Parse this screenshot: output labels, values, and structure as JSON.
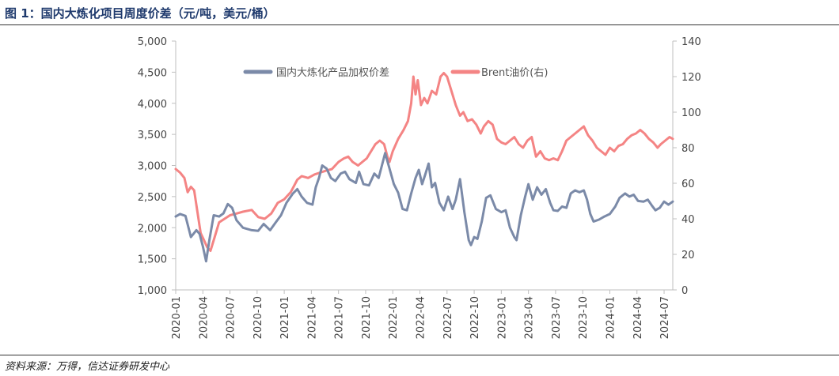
{
  "figure": {
    "title": "图 1：国内大炼化项目周度价差（元/吨，美元/桶）",
    "source": "资料来源：万得，信达证券研发中心"
  },
  "colors": {
    "series_spread": "#7b8aa8",
    "series_brent": "#f48484",
    "axis": "#bfbfbf",
    "title": "#1f3a6d"
  },
  "chart_data": {
    "type": "line",
    "grid": false,
    "legend_position": "top-center",
    "x_tick_labels": [
      "2020-01",
      "2020-04",
      "2020-07",
      "2020-10",
      "2021-01",
      "2021-04",
      "2021-07",
      "2021-10",
      "2022-01",
      "2022-04",
      "2022-07",
      "2022-10",
      "2023-01",
      "2023-04",
      "2023-07",
      "2023-10",
      "2024-01",
      "2024-04",
      "2024-07"
    ],
    "x_range": [
      2020.0,
      2024.58
    ],
    "y_left": {
      "range": [
        1000,
        5000
      ],
      "ticks": [
        1000,
        1500,
        2000,
        2500,
        3000,
        3500,
        4000,
        4500,
        5000
      ],
      "tick_labels": [
        "1,000",
        "1,500",
        "2,000",
        "2,500",
        "3,000",
        "3,500",
        "4,000",
        "4,500",
        "5,000"
      ]
    },
    "y_right": {
      "range": [
        0,
        140
      ],
      "ticks": [
        0,
        20,
        40,
        60,
        80,
        100,
        120,
        140
      ],
      "tick_labels": [
        "0",
        "20",
        "40",
        "60",
        "80",
        "100",
        "120",
        "140"
      ]
    },
    "series": [
      {
        "name": "国内大炼化产品加权价差",
        "axis": "left",
        "points": [
          [
            2020.0,
            2180
          ],
          [
            2020.04,
            2220
          ],
          [
            2020.09,
            2190
          ],
          [
            2020.14,
            1850
          ],
          [
            2020.19,
            1960
          ],
          [
            2020.22,
            1900
          ],
          [
            2020.25,
            1700
          ],
          [
            2020.28,
            1460
          ],
          [
            2020.31,
            1800
          ],
          [
            2020.35,
            2200
          ],
          [
            2020.4,
            2180
          ],
          [
            2020.44,
            2230
          ],
          [
            2020.48,
            2380
          ],
          [
            2020.52,
            2320
          ],
          [
            2020.56,
            2120
          ],
          [
            2020.62,
            2000
          ],
          [
            2020.7,
            1960
          ],
          [
            2020.76,
            1950
          ],
          [
            2020.81,
            2060
          ],
          [
            2020.87,
            1960
          ],
          [
            2020.92,
            2080
          ],
          [
            2020.97,
            2200
          ],
          [
            2021.02,
            2400
          ],
          [
            2021.08,
            2550
          ],
          [
            2021.12,
            2620
          ],
          [
            2021.16,
            2500
          ],
          [
            2021.21,
            2400
          ],
          [
            2021.26,
            2370
          ],
          [
            2021.29,
            2650
          ],
          [
            2021.32,
            2800
          ],
          [
            2021.35,
            3000
          ],
          [
            2021.39,
            2950
          ],
          [
            2021.43,
            2800
          ],
          [
            2021.47,
            2750
          ],
          [
            2021.52,
            2870
          ],
          [
            2021.56,
            2900
          ],
          [
            2021.6,
            2780
          ],
          [
            2021.66,
            2720
          ],
          [
            2021.69,
            2900
          ],
          [
            2021.73,
            2700
          ],
          [
            2021.78,
            2680
          ],
          [
            2021.83,
            2870
          ],
          [
            2021.87,
            2800
          ],
          [
            2021.9,
            3000
          ],
          [
            2021.93,
            3200
          ],
          [
            2021.97,
            2950
          ],
          [
            2022.01,
            2700
          ],
          [
            2022.05,
            2560
          ],
          [
            2022.09,
            2300
          ],
          [
            2022.13,
            2280
          ],
          [
            2022.17,
            2550
          ],
          [
            2022.21,
            2800
          ],
          [
            2022.24,
            2930
          ],
          [
            2022.27,
            2700
          ],
          [
            2022.3,
            2860
          ],
          [
            2022.33,
            3030
          ],
          [
            2022.36,
            2650
          ],
          [
            2022.39,
            2720
          ],
          [
            2022.43,
            2400
          ],
          [
            2022.47,
            2280
          ],
          [
            2022.51,
            2500
          ],
          [
            2022.55,
            2300
          ],
          [
            2022.58,
            2450
          ],
          [
            2022.62,
            2780
          ],
          [
            2022.66,
            2250
          ],
          [
            2022.7,
            1800
          ],
          [
            2022.72,
            1720
          ],
          [
            2022.75,
            1850
          ],
          [
            2022.78,
            1820
          ],
          [
            2022.82,
            2100
          ],
          [
            2022.86,
            2480
          ],
          [
            2022.9,
            2520
          ],
          [
            2022.95,
            2300
          ],
          [
            2023.0,
            2250
          ],
          [
            2023.04,
            2280
          ],
          [
            2023.08,
            2000
          ],
          [
            2023.12,
            1850
          ],
          [
            2023.14,
            1800
          ],
          [
            2023.18,
            2200
          ],
          [
            2023.22,
            2500
          ],
          [
            2023.25,
            2700
          ],
          [
            2023.29,
            2450
          ],
          [
            2023.33,
            2650
          ],
          [
            2023.37,
            2530
          ],
          [
            2023.41,
            2620
          ],
          [
            2023.45,
            2400
          ],
          [
            2023.48,
            2280
          ],
          [
            2023.52,
            2270
          ],
          [
            2023.56,
            2340
          ],
          [
            2023.6,
            2320
          ],
          [
            2023.64,
            2550
          ],
          [
            2023.68,
            2600
          ],
          [
            2023.72,
            2570
          ],
          [
            2023.76,
            2600
          ],
          [
            2023.79,
            2450
          ],
          [
            2023.82,
            2220
          ],
          [
            2023.85,
            2100
          ],
          [
            2023.9,
            2130
          ],
          [
            2023.95,
            2180
          ],
          [
            2024.0,
            2220
          ],
          [
            2024.05,
            2340
          ],
          [
            2024.09,
            2480
          ],
          [
            2024.14,
            2550
          ],
          [
            2024.18,
            2500
          ],
          [
            2024.22,
            2530
          ],
          [
            2024.26,
            2430
          ],
          [
            2024.31,
            2420
          ],
          [
            2024.35,
            2450
          ],
          [
            2024.39,
            2350
          ],
          [
            2024.42,
            2280
          ],
          [
            2024.46,
            2320
          ],
          [
            2024.5,
            2420
          ],
          [
            2024.54,
            2370
          ],
          [
            2024.58,
            2420
          ]
        ]
      },
      {
        "name": "Brent油价(右)",
        "axis": "right",
        "points": [
          [
            2020.0,
            68
          ],
          [
            2020.04,
            66
          ],
          [
            2020.08,
            63
          ],
          [
            2020.11,
            55
          ],
          [
            2020.14,
            58
          ],
          [
            2020.17,
            56
          ],
          [
            2020.2,
            44
          ],
          [
            2020.23,
            32
          ],
          [
            2020.26,
            28
          ],
          [
            2020.29,
            24
          ],
          [
            2020.32,
            22
          ],
          [
            2020.36,
            30
          ],
          [
            2020.4,
            38
          ],
          [
            2020.45,
            40
          ],
          [
            2020.5,
            42
          ],
          [
            2020.56,
            43
          ],
          [
            2020.62,
            44
          ],
          [
            2020.7,
            45
          ],
          [
            2020.76,
            41
          ],
          [
            2020.82,
            40
          ],
          [
            2020.88,
            43
          ],
          [
            2020.94,
            49
          ],
          [
            2021.0,
            51
          ],
          [
            2021.06,
            55
          ],
          [
            2021.12,
            62
          ],
          [
            2021.16,
            64
          ],
          [
            2021.22,
            63
          ],
          [
            2021.28,
            65
          ],
          [
            2021.33,
            66
          ],
          [
            2021.38,
            67
          ],
          [
            2021.44,
            68
          ],
          [
            2021.5,
            72
          ],
          [
            2021.55,
            74
          ],
          [
            2021.59,
            75
          ],
          [
            2021.63,
            72
          ],
          [
            2021.68,
            70
          ],
          [
            2021.72,
            72
          ],
          [
            2021.76,
            74
          ],
          [
            2021.8,
            78
          ],
          [
            2021.84,
            82
          ],
          [
            2021.88,
            84
          ],
          [
            2021.92,
            82
          ],
          [
            2021.95,
            75
          ],
          [
            2021.97,
            72
          ],
          [
            2022.0,
            78
          ],
          [
            2022.05,
            85
          ],
          [
            2022.1,
            90
          ],
          [
            2022.14,
            95
          ],
          [
            2022.17,
            105
          ],
          [
            2022.19,
            120
          ],
          [
            2022.21,
            110
          ],
          [
            2022.23,
            118
          ],
          [
            2022.26,
            104
          ],
          [
            2022.29,
            108
          ],
          [
            2022.32,
            105
          ],
          [
            2022.36,
            112
          ],
          [
            2022.4,
            110
          ],
          [
            2022.44,
            120
          ],
          [
            2022.47,
            122
          ],
          [
            2022.5,
            120
          ],
          [
            2022.54,
            112
          ],
          [
            2022.58,
            104
          ],
          [
            2022.62,
            98
          ],
          [
            2022.65,
            100
          ],
          [
            2022.69,
            95
          ],
          [
            2022.73,
            96
          ],
          [
            2022.77,
            93
          ],
          [
            2022.81,
            88
          ],
          [
            2022.84,
            92
          ],
          [
            2022.88,
            95
          ],
          [
            2022.92,
            93
          ],
          [
            2022.96,
            85
          ],
          [
            2023.0,
            83
          ],
          [
            2023.04,
            82
          ],
          [
            2023.08,
            84
          ],
          [
            2023.12,
            86
          ],
          [
            2023.16,
            82
          ],
          [
            2023.2,
            80
          ],
          [
            2023.24,
            84
          ],
          [
            2023.28,
            86
          ],
          [
            2023.32,
            75
          ],
          [
            2023.36,
            78
          ],
          [
            2023.4,
            74
          ],
          [
            2023.44,
            73
          ],
          [
            2023.48,
            74
          ],
          [
            2023.52,
            73
          ],
          [
            2023.56,
            78
          ],
          [
            2023.6,
            84
          ],
          [
            2023.64,
            86
          ],
          [
            2023.68,
            88
          ],
          [
            2023.72,
            90
          ],
          [
            2023.76,
            92
          ],
          [
            2023.8,
            87
          ],
          [
            2023.84,
            84
          ],
          [
            2023.88,
            80
          ],
          [
            2023.92,
            78
          ],
          [
            2023.96,
            76
          ],
          [
            2024.0,
            80
          ],
          [
            2024.04,
            78
          ],
          [
            2024.08,
            81
          ],
          [
            2024.12,
            82
          ],
          [
            2024.16,
            85
          ],
          [
            2024.2,
            87
          ],
          [
            2024.24,
            88
          ],
          [
            2024.28,
            90
          ],
          [
            2024.32,
            88
          ],
          [
            2024.36,
            85
          ],
          [
            2024.4,
            83
          ],
          [
            2024.44,
            80
          ],
          [
            2024.47,
            82
          ],
          [
            2024.51,
            84
          ],
          [
            2024.55,
            86
          ],
          [
            2024.58,
            85
          ]
        ]
      }
    ]
  }
}
